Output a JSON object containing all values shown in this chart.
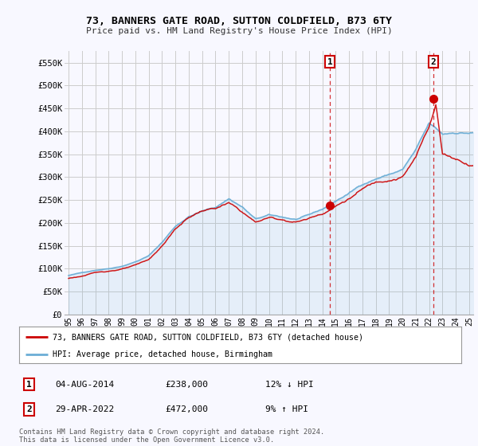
{
  "title": "73, BANNERS GATE ROAD, SUTTON COLDFIELD, B73 6TY",
  "subtitle": "Price paid vs. HM Land Registry's House Price Index (HPI)",
  "legend_line1": "73, BANNERS GATE ROAD, SUTTON COLDFIELD, B73 6TY (detached house)",
  "legend_line2": "HPI: Average price, detached house, Birmingham",
  "footnote": "Contains HM Land Registry data © Crown copyright and database right 2024.\nThis data is licensed under the Open Government Licence v3.0.",
  "annotation1": {
    "num": "1",
    "date": "04-AUG-2014",
    "price": "£238,000",
    "hpi": "12% ↓ HPI",
    "x": 2014.58
  },
  "annotation2": {
    "num": "2",
    "date": "29-APR-2022",
    "price": "£472,000",
    "hpi": "9% ↑ HPI",
    "x": 2022.33
  },
  "hpi_color": "#6baed6",
  "sale_color": "#cc0000",
  "background_color": "#f8f8ff",
  "fill_color": "#ddeeff",
  "grid_color": "#cccccc",
  "ylim": [
    0,
    575000
  ],
  "xlim_start": 1994.7,
  "xlim_end": 2025.3,
  "yticks": [
    0,
    50000,
    100000,
    150000,
    200000,
    250000,
    300000,
    350000,
    400000,
    450000,
    500000,
    550000
  ],
  "ytick_labels": [
    "£0",
    "£50K",
    "£100K",
    "£150K",
    "£200K",
    "£250K",
    "£300K",
    "£350K",
    "£400K",
    "£450K",
    "£500K",
    "£550K"
  ],
  "xticks": [
    1995,
    1996,
    1997,
    1998,
    1999,
    2000,
    2001,
    2002,
    2003,
    2004,
    2005,
    2006,
    2007,
    2008,
    2009,
    2010,
    2011,
    2012,
    2013,
    2014,
    2015,
    2016,
    2017,
    2018,
    2019,
    2020,
    2021,
    2022,
    2023,
    2024,
    2025
  ],
  "sale_years": [
    2014.58,
    2022.33
  ],
  "sale_values": [
    238000,
    472000
  ]
}
